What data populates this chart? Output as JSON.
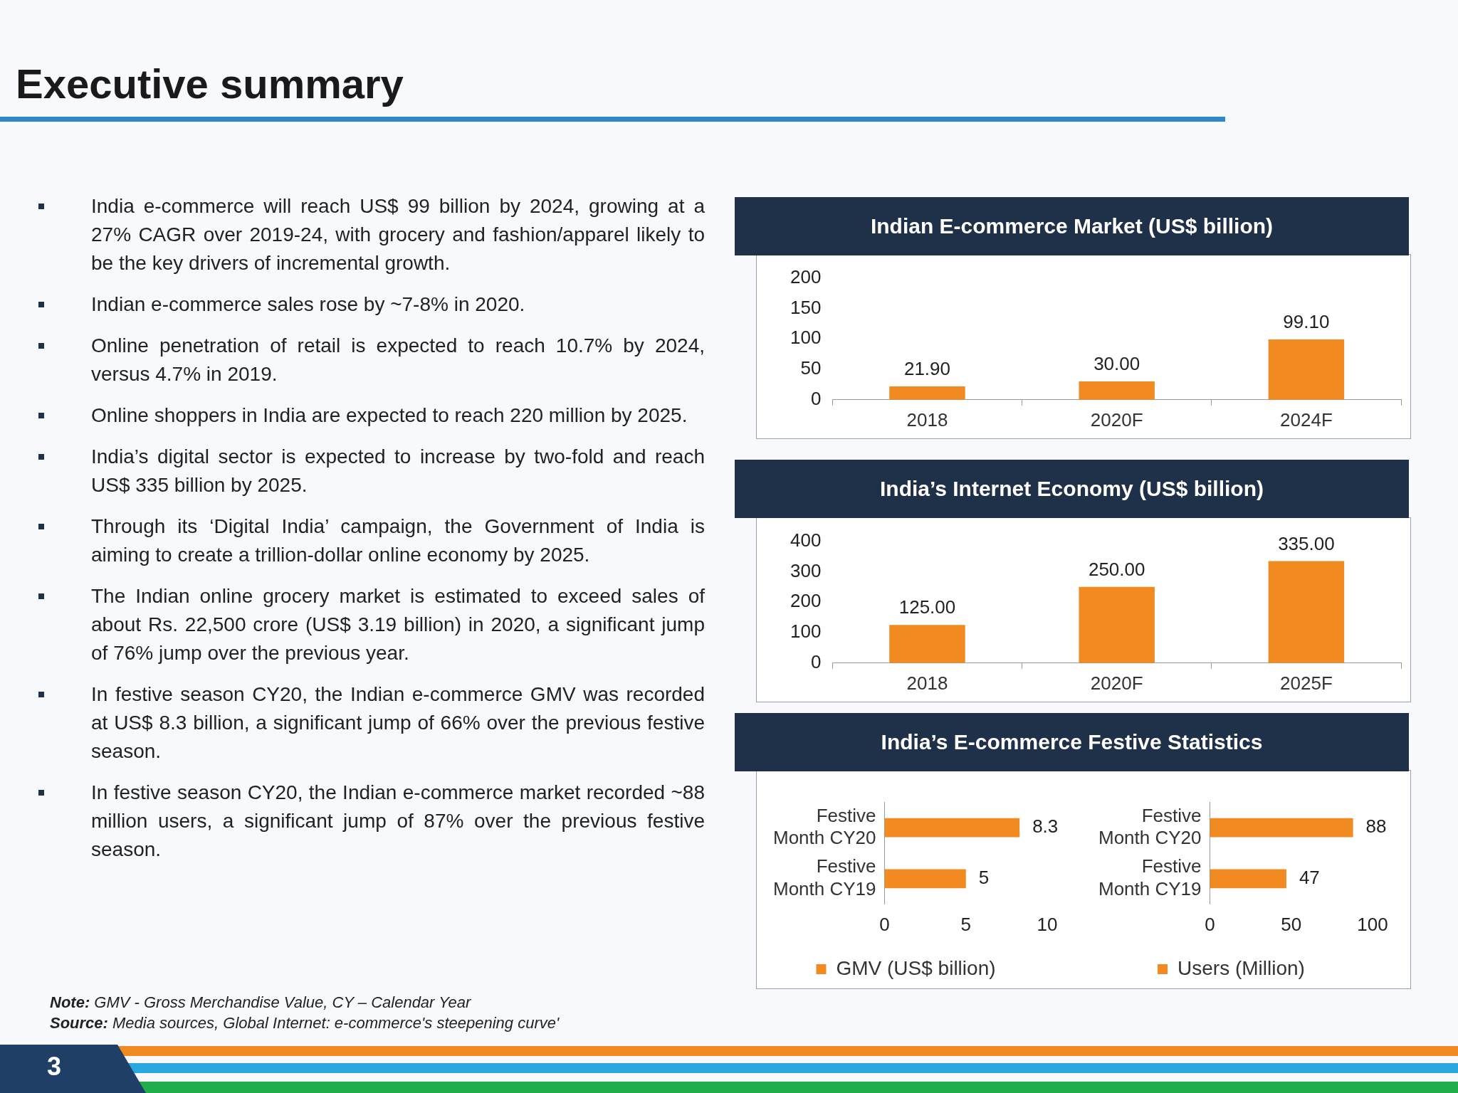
{
  "chart_data": [
    {
      "type": "bar",
      "title": "Indian E-commerce Market (US$ billion)",
      "categories": [
        "2018",
        "2020F",
        "2024F"
      ],
      "values": [
        21.9,
        30,
        99.1
      ],
      "color": "#f28a22",
      "value_labels": [
        "21.90",
        "30.00",
        "99.10"
      ],
      "ylim": [
        0,
        200
      ],
      "yticks": [
        0,
        50,
        100,
        150,
        200
      ],
      "grid": false
    },
    {
      "type": "bar",
      "title": "India’s Internet Economy (US$ billion)",
      "categories": [
        "2018",
        "2020F",
        "2025F"
      ],
      "values": [
        125,
        250,
        335
      ],
      "color": "#f28a22",
      "value_labels": [
        "125.00",
        "250.00",
        "335.00"
      ],
      "ylim": [
        0,
        400
      ],
      "yticks": [
        0,
        100,
        200,
        300,
        400
      ],
      "grid": false
    },
    {
      "type": "bar",
      "title": "India’s E-commerce Festive Statistics",
      "orientation": "horizontal",
      "categories": [
        "Festive Month CY20",
        "Festive Month CY19"
      ],
      "series": [
        {
          "name": "GMV (US$ billion)",
          "color": "#f28a22",
          "values": [
            8.3,
            5
          ]
        }
      ],
      "data_labels": true,
      "xlim": [
        0,
        10
      ],
      "xticks": [
        0,
        5,
        10
      ],
      "grid": false,
      "legend": "bottom"
    },
    {
      "type": "bar",
      "orientation": "horizontal",
      "categories": [
        "Festive Month CY20",
        "Festive Month CY19"
      ],
      "series": [
        {
          "name": "Users (Million)",
          "color": "#f28a22",
          "values": [
            88,
            47
          ]
        }
      ],
      "data_labels": true,
      "xlim": [
        0,
        100
      ],
      "xticks": [
        0,
        50,
        100
      ],
      "grid": false,
      "legend": "bottom"
    },
    {
      "type": "other",
      "title": "Executive summary",
      "annotations": [
        "India e-commerce will reach US$ 99 billion by 2024, growing at a 27% CAGR over 2019-24, with grocery and fashion/apparel likely to be the key drivers of incremental growth.",
        "Indian e-commerce sales rose by ~7-8% in 2020.",
        "Online penetration of retail is expected to reach 10.7% by 2024, versus 4.7% in 2019.",
        "Online shoppers in India are expected to reach 220 million by 2025.",
        "India’s digital sector is expected to increase by two-fold and reach US$ 335 billion by 2025.",
        "Through its ‘Digital India’ campaign, the Government of India is aiming to create a trillion-dollar online economy by 2025.",
        "The Indian online grocery market is estimated to exceed sales of about Rs. 22,500 crore (US$ 3.19 billion) in 2020, a significant jump of 76% jump over the previous year.",
        "In festive season CY20, the Indian e-commerce GMV was recorded at US$ 8.3 billion, a significant jump of 66% over the previous festive season.",
        "In festive season CY20, the Indian e-commerce market recorded ~88 million users, a significant jump of 87% over the previous festive season.",
        "Note: GMV - Gross Merchandise Value, CY – Calendar Year",
        "Source: Media sources, Global Internet: e-commerce's steepening curve'",
        "3"
      ]
    }
  ]
}
